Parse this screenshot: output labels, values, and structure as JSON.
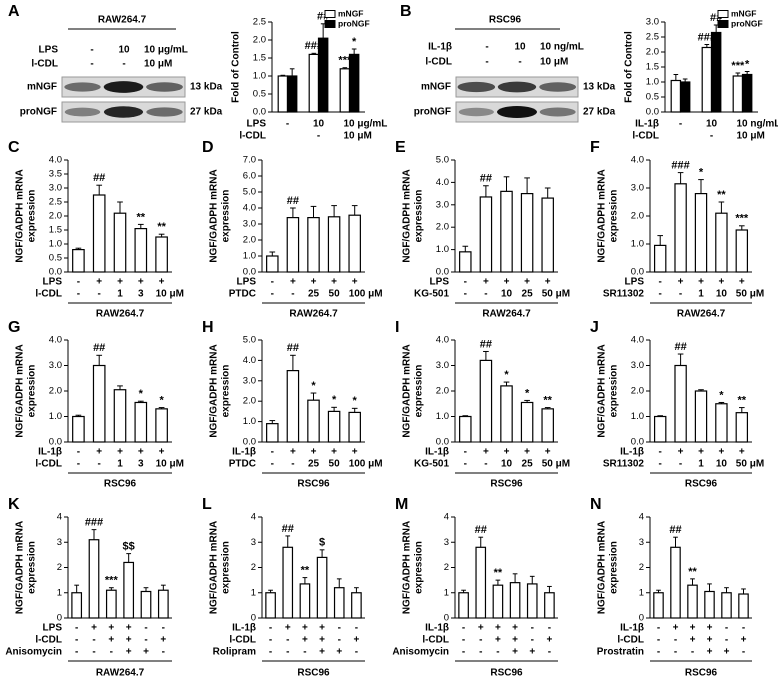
{
  "blots": [
    {
      "panel": "A",
      "cell_line": "RAW264.7",
      "rows": [
        {
          "label": "LPS",
          "cells": [
            "-",
            "10",
            "10 μg/mL"
          ]
        },
        {
          "label": "l-CDL",
          "cells": [
            "-",
            "-",
            "10 μM"
          ]
        }
      ],
      "bands": [
        {
          "label": "mNGF",
          "size": "13 kDa"
        },
        {
          "label": "proNGF",
          "size": "27 kDa"
        }
      ]
    },
    {
      "panel": "B",
      "cell_line": "RSC96",
      "rows": [
        {
          "label": "IL-1β",
          "cells": [
            "-",
            "10",
            "10 ng/mL"
          ]
        },
        {
          "label": "l-CDL",
          "cells": [
            "-",
            "-",
            "10 μM"
          ]
        }
      ],
      "bands": [
        {
          "label": "mNGF",
          "size": "13 kDa"
        },
        {
          "label": "proNGF",
          "size": "27 kDa"
        }
      ]
    }
  ],
  "chart_data": [
    {
      "type": "bar",
      "ylabel": [
        "Fold of Control"
      ],
      "ylim": [
        0,
        2.5
      ],
      "yticks": [
        {
          "value": 0,
          "label": "0.0"
        },
        0.5,
        {
          "value": 1,
          "label": "1.0"
        },
        1.5,
        {
          "value": 2,
          "label": "2.0"
        },
        2.5
      ],
      "series": [
        {
          "name": "mNGF",
          "color": "#ffffff",
          "values": [
            1.0,
            1.6,
            1.2
          ],
          "errors": [
            0.02,
            0.03,
            0.03
          ],
          "annotations": [
            null,
            "###",
            "***"
          ]
        },
        {
          "name": "proNGF",
          "color": "#000000",
          "values": [
            1.0,
            2.05,
            1.6
          ],
          "errors": [
            0.2,
            0.4,
            0.15
          ],
          "annotations": [
            null,
            "##",
            "*"
          ]
        }
      ],
      "treatments": [
        {
          "label": "LPS",
          "cells": [
            "-",
            "10",
            "10 μg/mL"
          ]
        },
        {
          "label": "l-CDL",
          "cells": [
            null,
            "-",
            "10 μM"
          ]
        }
      ]
    },
    {
      "type": "bar",
      "ylabel": [
        "Fold of Control"
      ],
      "ylim": [
        0,
        3.0
      ],
      "yticks": [
        {
          "value": 0,
          "label": "0.0"
        },
        0.5,
        {
          "value": 1,
          "label": "1.0"
        },
        1.5,
        {
          "value": 2,
          "label": "2.0"
        },
        2.5,
        {
          "value": 3,
          "label": "3.0"
        }
      ],
      "series": [
        {
          "name": "mNGF",
          "color": "#ffffff",
          "values": [
            1.05,
            2.15,
            1.2
          ],
          "errors": [
            0.2,
            0.1,
            0.1
          ],
          "annotations": [
            null,
            "###",
            "***"
          ]
        },
        {
          "name": "proNGF",
          "color": "#000000",
          "values": [
            1.0,
            2.65,
            1.25
          ],
          "errors": [
            0.1,
            0.25,
            0.1
          ],
          "annotations": [
            null,
            "##",
            "*"
          ]
        }
      ],
      "treatments": [
        {
          "label": "IL-1β",
          "cells": [
            "-",
            "10",
            "10 ng/mL"
          ]
        },
        {
          "label": "l-CDL",
          "cells": [
            null,
            "-",
            "10 μM"
          ]
        }
      ]
    },
    {
      "type": "bar",
      "panel": "C",
      "ylabel": [
        "NGF/GADPH mRNA",
        "expression"
      ],
      "ylim": [
        0,
        4
      ],
      "yticks": [
        {
          "value": 0,
          "label": "0.0"
        },
        0.5,
        {
          "value": 1,
          "label": "1.0"
        },
        1.5,
        {
          "value": 2,
          "label": "2.0"
        },
        2.5,
        {
          "value": 3,
          "label": "3.0"
        },
        3.5,
        {
          "value": 4,
          "label": "4.0"
        }
      ],
      "color": "#ffffff",
      "values": [
        0.8,
        2.75,
        2.1,
        1.55,
        1.25
      ],
      "errors": [
        0.05,
        0.35,
        0.4,
        0.15,
        0.1
      ],
      "annotations": [
        null,
        "##",
        null,
        "**",
        "**"
      ],
      "treatments": [
        {
          "label": "LPS",
          "cells": [
            "-",
            "+",
            "+",
            "+",
            "+"
          ]
        },
        {
          "label": "l-CDL",
          "cells": [
            "-",
            "-",
            "1",
            "3",
            "10 μM"
          ]
        }
      ],
      "group": "RAW264.7"
    },
    {
      "type": "bar",
      "panel": "D",
      "ylabel": [
        "NGF/GADPH mRNA",
        "expression"
      ],
      "ylim": [
        0,
        7
      ],
      "yticks": [
        {
          "value": 0,
          "label": "0.0"
        },
        {
          "value": 1,
          "label": "1.0"
        },
        {
          "value": 2,
          "label": "2.0"
        },
        {
          "value": 3,
          "label": "3.0"
        },
        {
          "value": 4,
          "label": "4.0"
        },
        {
          "value": 5,
          "label": "5.0"
        },
        {
          "value": 6,
          "label": "6.0"
        },
        {
          "value": 7,
          "label": "7.0"
        }
      ],
      "color": "#ffffff",
      "values": [
        1.0,
        3.4,
        3.4,
        3.45,
        3.55
      ],
      "errors": [
        0.25,
        0.6,
        0.7,
        0.7,
        0.6
      ],
      "annotations": [
        null,
        "##",
        null,
        null,
        null
      ],
      "treatments": [
        {
          "label": "LPS",
          "cells": [
            "-",
            "+",
            "+",
            "+",
            "+"
          ]
        },
        {
          "label": "PTDC",
          "cells": [
            "-",
            "-",
            "25",
            "50",
            "100 μM"
          ]
        }
      ],
      "group": "RAW264.7"
    },
    {
      "type": "bar",
      "panel": "E",
      "ylabel": [
        "NGF/GADPH mRNA",
        "expression"
      ],
      "ylim": [
        0,
        5
      ],
      "yticks": [
        {
          "value": 0,
          "label": "0.0"
        },
        {
          "value": 1,
          "label": "1.0"
        },
        {
          "value": 2,
          "label": "2.0"
        },
        {
          "value": 3,
          "label": "3.0"
        },
        {
          "value": 4,
          "label": "4.0"
        },
        {
          "value": 5,
          "label": "5.0"
        }
      ],
      "color": "#ffffff",
      "values": [
        0.9,
        3.35,
        3.6,
        3.5,
        3.3
      ],
      "errors": [
        0.25,
        0.5,
        0.65,
        0.7,
        0.45
      ],
      "annotations": [
        null,
        "##",
        null,
        null,
        null
      ],
      "treatments": [
        {
          "label": "LPS",
          "cells": [
            "-",
            "+",
            "+",
            "+",
            "+"
          ]
        },
        {
          "label": "KG-501",
          "cells": [
            "-",
            "-",
            "10",
            "25",
            "50 μM"
          ]
        }
      ],
      "group": "RAW264.7"
    },
    {
      "type": "bar",
      "panel": "F",
      "ylabel": [
        "NGF/GADPH mRNA",
        "expression"
      ],
      "ylim": [
        0,
        4
      ],
      "yticks": [
        {
          "value": 0,
          "label": "0.0"
        },
        {
          "value": 1,
          "label": "1.0"
        },
        {
          "value": 2,
          "label": "2.0"
        },
        {
          "value": 3,
          "label": "3.0"
        },
        {
          "value": 4,
          "label": "4.0"
        }
      ],
      "color": "#ffffff",
      "values": [
        0.95,
        3.15,
        2.8,
        2.1,
        1.5
      ],
      "errors": [
        0.35,
        0.4,
        0.5,
        0.4,
        0.15
      ],
      "annotations": [
        null,
        "###",
        "*",
        "**",
        "***"
      ],
      "treatments": [
        {
          "label": "LPS",
          "cells": [
            "-",
            "+",
            "+",
            "+",
            "+"
          ]
        },
        {
          "label": "SR11302",
          "cells": [
            "-",
            "-",
            "1",
            "10",
            "50 μM"
          ]
        }
      ],
      "group": "RAW264.7"
    },
    {
      "type": "bar",
      "panel": "G",
      "ylabel": [
        "NGF/GADPH mRNA",
        "expression"
      ],
      "ylim": [
        0,
        4
      ],
      "yticks": [
        {
          "value": 0,
          "label": "0.0"
        },
        {
          "value": 1,
          "label": "1.0"
        },
        {
          "value": 2,
          "label": "2.0"
        },
        {
          "value": 3,
          "label": "3.0"
        },
        {
          "value": 4,
          "label": "4.0"
        }
      ],
      "color": "#ffffff",
      "values": [
        1.0,
        3.0,
        2.05,
        1.55,
        1.3
      ],
      "errors": [
        0.05,
        0.4,
        0.15,
        0.05,
        0.05
      ],
      "annotations": [
        null,
        "##",
        null,
        "*",
        "*"
      ],
      "treatments": [
        {
          "label": "IL-1β",
          "cells": [
            "-",
            "+",
            "+",
            "+",
            "+"
          ]
        },
        {
          "label": "l-CDL",
          "cells": [
            "-",
            "-",
            "1",
            "3",
            "10 μM"
          ]
        }
      ],
      "group": "RSC96"
    },
    {
      "type": "bar",
      "panel": "H",
      "ylabel": [
        "NGF/GADPH mRNA",
        "expression"
      ],
      "ylim": [
        0,
        5
      ],
      "yticks": [
        {
          "value": 0,
          "label": "0.0"
        },
        {
          "value": 1,
          "label": "1.0"
        },
        {
          "value": 2,
          "label": "2.0"
        },
        {
          "value": 3,
          "label": "3.0"
        },
        {
          "value": 4,
          "label": "4.0"
        },
        {
          "value": 5,
          "label": "5.0"
        }
      ],
      "color": "#ffffff",
      "values": [
        0.9,
        3.5,
        2.05,
        1.5,
        1.45
      ],
      "errors": [
        0.15,
        0.75,
        0.35,
        0.2,
        0.2
      ],
      "annotations": [
        null,
        "##",
        "*",
        "*",
        "*"
      ],
      "treatments": [
        {
          "label": "IL-1β",
          "cells": [
            "-",
            "+",
            "+",
            "+",
            "+"
          ]
        },
        {
          "label": "PTDC",
          "cells": [
            "-",
            "-",
            "25",
            "50",
            "100 μM"
          ]
        }
      ],
      "group": "RSC96"
    },
    {
      "type": "bar",
      "panel": "I",
      "ylabel": [
        "NGF/GADPH mRNA",
        "expression"
      ],
      "ylim": [
        0,
        4
      ],
      "yticks": [
        {
          "value": 0,
          "label": "0.0"
        },
        {
          "value": 1,
          "label": "1.0"
        },
        {
          "value": 2,
          "label": "2.0"
        },
        {
          "value": 3,
          "label": "3.0"
        },
        {
          "value": 4,
          "label": "4.0"
        }
      ],
      "color": "#ffffff",
      "values": [
        1.0,
        3.2,
        2.2,
        1.55,
        1.3
      ],
      "errors": [
        0.03,
        0.35,
        0.15,
        0.08,
        0.05
      ],
      "annotations": [
        null,
        "##",
        "*",
        "*",
        "**"
      ],
      "treatments": [
        {
          "label": "IL-1β",
          "cells": [
            "-",
            "+",
            "+",
            "+",
            "+"
          ]
        },
        {
          "label": "KG-501",
          "cells": [
            "-",
            "-",
            "10",
            "25",
            "50 μM"
          ]
        }
      ],
      "group": "RSC96"
    },
    {
      "type": "bar",
      "panel": "J",
      "ylabel": [
        "NGF/GADPH mRNA",
        "expression"
      ],
      "ylim": [
        0,
        4
      ],
      "yticks": [
        {
          "value": 0,
          "label": "0.0"
        },
        {
          "value": 1,
          "label": "1.0"
        },
        {
          "value": 2,
          "label": "2.0"
        },
        {
          "value": 3,
          "label": "3.0"
        },
        {
          "value": 4,
          "label": "4.0"
        }
      ],
      "color": "#ffffff",
      "values": [
        1.0,
        3.0,
        2.0,
        1.5,
        1.15
      ],
      "errors": [
        0.03,
        0.45,
        0.05,
        0.05,
        0.2
      ],
      "annotations": [
        null,
        "##",
        null,
        "*",
        "**"
      ],
      "treatments": [
        {
          "label": "IL-1β",
          "cells": [
            "-",
            "+",
            "+",
            "+",
            "+"
          ]
        },
        {
          "label": "SR11302",
          "cells": [
            "-",
            "-",
            "1",
            "10",
            "50 μM"
          ]
        }
      ],
      "group": "RSC96"
    },
    {
      "type": "bar",
      "panel": "K",
      "ylabel": [
        "NGF/GADPH mRNA",
        "expression"
      ],
      "ylim": [
        0,
        4
      ],
      "yticks": [
        0,
        1,
        2,
        3,
        4
      ],
      "color": "#ffffff",
      "values": [
        1.0,
        3.1,
        1.1,
        2.2,
        1.05,
        1.1
      ],
      "errors": [
        0.3,
        0.4,
        0.1,
        0.35,
        0.15,
        0.2
      ],
      "annotations": [
        null,
        "###",
        "***",
        "$$",
        null,
        null
      ],
      "treatments": [
        {
          "label": "LPS",
          "cells": [
            "-",
            "+",
            "+",
            "+",
            "-",
            "-"
          ]
        },
        {
          "label": "l-CDL",
          "cells": [
            "-",
            "-",
            "+",
            "+",
            "-",
            "+"
          ]
        },
        {
          "label": "Anisomycin",
          "cells": [
            "-",
            "-",
            "-",
            "+",
            "+",
            "-"
          ]
        }
      ],
      "group": "RAW264.7"
    },
    {
      "type": "bar",
      "panel": "L",
      "ylabel": [
        "NGF/GADPH mRNA",
        "expression"
      ],
      "ylim": [
        0,
        4
      ],
      "yticks": [
        0,
        1,
        2,
        3,
        4
      ],
      "color": "#ffffff",
      "values": [
        1.0,
        2.8,
        1.35,
        2.4,
        1.2,
        1.0
      ],
      "errors": [
        0.1,
        0.45,
        0.25,
        0.3,
        0.35,
        0.2
      ],
      "annotations": [
        null,
        "##",
        "**",
        "$",
        null,
        null
      ],
      "treatments": [
        {
          "label": "IL-1β",
          "cells": [
            "-",
            "+",
            "+",
            "+",
            "-",
            "-"
          ]
        },
        {
          "label": "l-CDL",
          "cells": [
            "-",
            "-",
            "+",
            "+",
            "-",
            "+"
          ]
        },
        {
          "label": "Rolipram",
          "cells": [
            "-",
            "-",
            "-",
            "+",
            "+",
            "-"
          ]
        }
      ],
      "group": "RSC96"
    },
    {
      "type": "bar",
      "panel": "M",
      "ylabel": [
        "NGF/GADPH mRNA",
        "expression"
      ],
      "ylim": [
        0,
        4
      ],
      "yticks": [
        0,
        1,
        2,
        3,
        4
      ],
      "color": "#ffffff",
      "values": [
        1.0,
        2.8,
        1.3,
        1.4,
        1.35,
        1.0
      ],
      "errors": [
        0.1,
        0.4,
        0.2,
        0.35,
        0.3,
        0.25
      ],
      "annotations": [
        null,
        "##",
        "**",
        null,
        null,
        null
      ],
      "treatments": [
        {
          "label": "IL-1β",
          "cells": [
            "-",
            "+",
            "+",
            "+",
            "-",
            "-"
          ]
        },
        {
          "label": "l-CDL",
          "cells": [
            "-",
            "-",
            "+",
            "+",
            "-",
            "+"
          ]
        },
        {
          "label": "Anisomycin",
          "cells": [
            "-",
            "-",
            "-",
            "+",
            "+",
            "-"
          ]
        }
      ],
      "group": "RSC96"
    },
    {
      "type": "bar",
      "panel": "N",
      "ylabel": [
        "NGF/GADPH mRNA",
        "expression"
      ],
      "ylim": [
        0,
        4
      ],
      "yticks": [
        0,
        1,
        2,
        3,
        4
      ],
      "color": "#ffffff",
      "values": [
        1.0,
        2.8,
        1.3,
        1.05,
        1.0,
        0.95
      ],
      "errors": [
        0.1,
        0.4,
        0.25,
        0.3,
        0.2,
        0.2
      ],
      "annotations": [
        null,
        "##",
        "**",
        null,
        null,
        null
      ],
      "treatments": [
        {
          "label": "IL-1β",
          "cells": [
            "-",
            "+",
            "+",
            "+",
            "-",
            "-"
          ]
        },
        {
          "label": "l-CDL",
          "cells": [
            "-",
            "-",
            "+",
            "+",
            "-",
            "+"
          ]
        },
        {
          "label": "Prostratin",
          "cells": [
            "-",
            "-",
            "-",
            "+",
            "+",
            "-"
          ]
        }
      ],
      "group": "RSC96"
    }
  ]
}
